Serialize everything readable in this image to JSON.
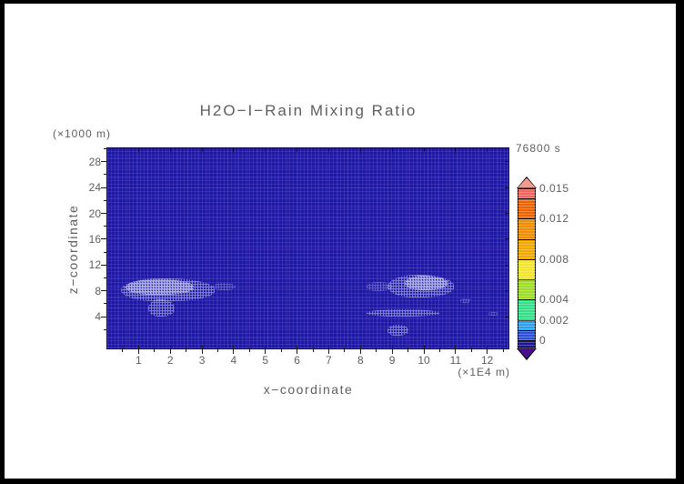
{
  "palette": {
    "background": "#FFFFFF",
    "frame": "#000000",
    "field_base": "#1D16A7",
    "cloud_speckle": "#CACEF2",
    "text": "#5E5E5E"
  },
  "chart_data": {
    "type": "heatmap",
    "title": "H2O−I−Rain Mixing Ratio",
    "time_stamp": "76800 s",
    "x_axis": {
      "label": "x−coordinate",
      "unit": "(×1E4 m)",
      "range": [
        0,
        12.7
      ],
      "major_ticks": [
        1,
        2,
        3,
        4,
        5,
        6,
        7,
        8,
        9,
        10,
        11,
        12
      ],
      "minor_tick_step": 0.5
    },
    "y_axis": {
      "label": "z−coordinate",
      "unit": "(×1000 m)",
      "range": [
        0,
        30
      ],
      "major_ticks": [
        4,
        8,
        12,
        16,
        20,
        24,
        28
      ],
      "minor_tick_step": 2
    },
    "colorbar": {
      "range": [
        0,
        0.015
      ],
      "tick_labels": [
        "0.015",
        "0.012",
        "0.008",
        "0.004",
        "0.002",
        "0"
      ],
      "tick_values": [
        0.015,
        0.012,
        0.008,
        0.004,
        0.002,
        0
      ],
      "segments": [
        {
          "from": 0,
          "to": 0.001,
          "color": "#2B4FDB"
        },
        {
          "from": 0.001,
          "to": 0.002,
          "color": "#2E9FF0"
        },
        {
          "from": 0.002,
          "to": 0.004,
          "color": "#35DF8A"
        },
        {
          "from": 0.004,
          "to": 0.006,
          "color": "#9EDC28"
        },
        {
          "from": 0.006,
          "to": 0.008,
          "color": "#F2E52E"
        },
        {
          "from": 0.008,
          "to": 0.01,
          "color": "#F2A800"
        },
        {
          "from": 0.01,
          "to": 0.012,
          "color": "#F08C00"
        },
        {
          "from": 0.012,
          "to": 0.014,
          "color": "#EE6200"
        },
        {
          "from": 0.014,
          "to": 0.015,
          "color": "#F2645C"
        }
      ],
      "under_color": "#1B1390",
      "under_arrow_color": "#4A0E8F",
      "over_arrow_color": "#F59A8F"
    },
    "field": {
      "background_value": 0,
      "anomaly_regions": [
        {
          "name": "left-cloud-main",
          "x": [
            0.45,
            3.4
          ],
          "z": [
            6.4,
            10.0
          ],
          "intensity": "medium"
        },
        {
          "name": "left-cloud-core",
          "x": [
            0.6,
            2.75
          ],
          "z": [
            7.4,
            9.85
          ],
          "intensity": "dense"
        },
        {
          "name": "left-cloud-tail",
          "x": [
            1.3,
            2.15
          ],
          "z": [
            4.0,
            6.7
          ],
          "intensity": "medium"
        },
        {
          "name": "left-cloud-east-wisp",
          "x": [
            3.35,
            4.05
          ],
          "z": [
            8.1,
            9.2
          ],
          "intensity": "sparse"
        },
        {
          "name": "right-cloud-main",
          "x": [
            8.85,
            10.95
          ],
          "z": [
            7.0,
            10.45
          ],
          "intensity": "medium"
        },
        {
          "name": "right-cloud-core",
          "x": [
            9.4,
            10.75
          ],
          "z": [
            8.1,
            10.3
          ],
          "intensity": "dense"
        },
        {
          "name": "right-cloud-west-wisp",
          "x": [
            8.2,
            9.0
          ],
          "z": [
            8.0,
            9.3
          ],
          "intensity": "sparse"
        },
        {
          "name": "right-streak",
          "x": [
            8.2,
            10.5
          ],
          "z": [
            4.0,
            5.1
          ],
          "intensity": "medium"
        },
        {
          "name": "right-low-patch",
          "x": [
            8.85,
            9.5
          ],
          "z": [
            1.1,
            2.8
          ],
          "intensity": "medium"
        },
        {
          "name": "right-dot-upper",
          "x": [
            11.15,
            11.5
          ],
          "z": [
            6.1,
            6.8
          ],
          "intensity": "sparse"
        },
        {
          "name": "right-dot-lower",
          "x": [
            12.05,
            12.35
          ],
          "z": [
            4.1,
            4.7
          ],
          "intensity": "sparse"
        }
      ]
    }
  }
}
